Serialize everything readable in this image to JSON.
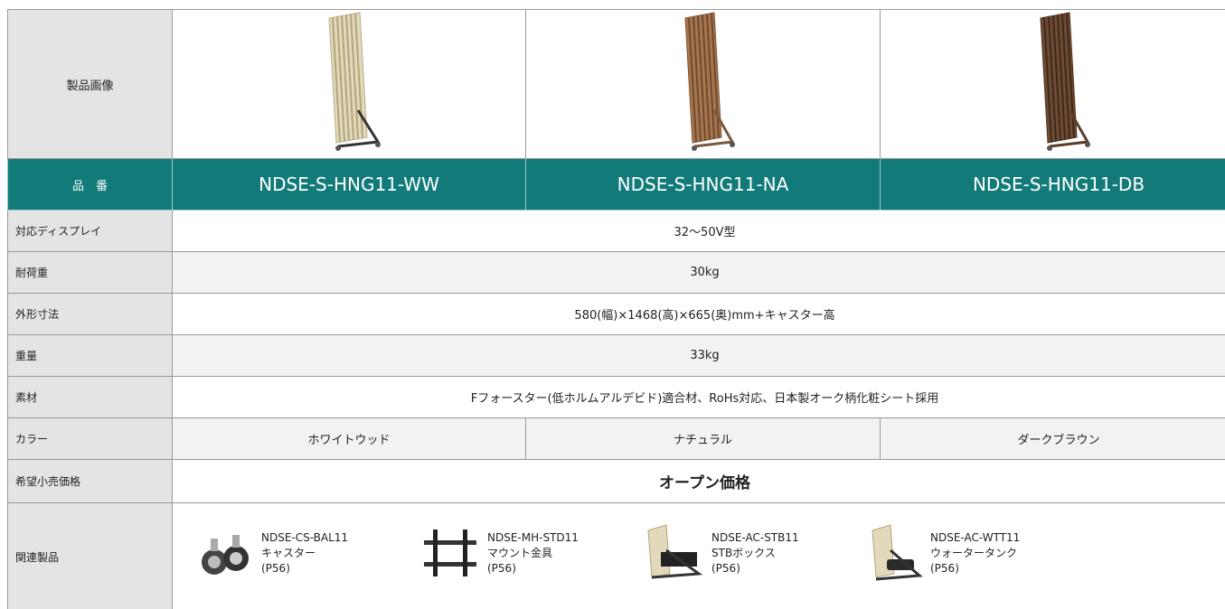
{
  "table": {
    "header": {
      "image_label": "製品画像",
      "number_label": "品　番",
      "models": [
        "NDSE-S-HNG11-WW",
        "NDSE-S-HNG11-NA",
        "NDSE-S-HNG11-DB"
      ]
    },
    "rows": [
      {
        "label": "対応ディスプレイ",
        "value": "32〜50V型"
      },
      {
        "label": "耐荷重",
        "value": "30kg"
      },
      {
        "label": "外形寸法",
        "value": "580(幅)×1468(高)×665(奥)mm+キャスター高"
      },
      {
        "label": "重量",
        "value": "33kg"
      },
      {
        "label": "素材",
        "value": "Fフォースター(低ホルムアルデビド)適合材、RoHs対応、日本製オーク柄化粧シート採用"
      }
    ],
    "colors": {
      "label": "カラー",
      "values": [
        "ホワイトウッド",
        "ナチュラル",
        "ダークブラウン"
      ]
    },
    "price": {
      "label": "希望小売価格",
      "value": "オープン価格"
    },
    "related": {
      "label": "関連製品",
      "items": [
        {
          "code": "NDSE-CS-BAL11",
          "name": "キャスター",
          "page": "(P56)"
        },
        {
          "code": "NDSE-MH-STD11",
          "name": "マウント金具",
          "page": "(P56)"
        },
        {
          "code": "NDSE-AC-STB11",
          "name": "STBボックス",
          "page": "(P56)"
        },
        {
          "code": "NDSE-AC-WTT11",
          "name": "ウォータータンク",
          "page": "(P56)"
        }
      ]
    }
  }
}
